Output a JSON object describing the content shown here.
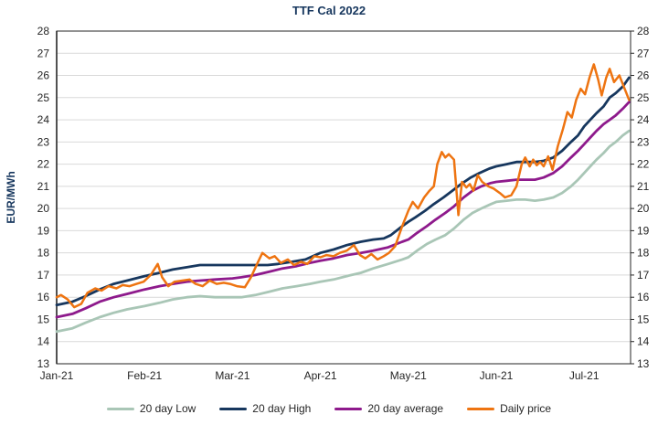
{
  "title": "TTF Cal 2022",
  "y_axis": {
    "label": "EUR/MWh",
    "min": 13,
    "max": 28,
    "tick_step": 1,
    "tick_labels": [
      "13",
      "14",
      "15",
      "16",
      "17",
      "18",
      "19",
      "20",
      "21",
      "22",
      "23",
      "24",
      "25",
      "26",
      "27",
      "28"
    ],
    "labels_on_both_sides": true
  },
  "x_axis": {
    "tick_labels": [
      "Jan-21",
      "Feb-21",
      "Mar-21",
      "Apr-21",
      "May-21",
      "Jun-21",
      "Jul-21"
    ]
  },
  "colors": {
    "title_text": "#17375E",
    "y_axis_title": "#17375E",
    "tick_text": "#262626",
    "gridline": "#D9D9D9",
    "axis_line": "#262626",
    "low": "#A9C6B6",
    "high": "#17375E",
    "average": "#8E1A8C",
    "daily": "#EE7411"
  },
  "chart_data": {
    "type": "line",
    "title": "TTF Cal 2022",
    "xlabel": "",
    "ylabel": "EUR/MWh",
    "ylim": [
      13,
      28
    ],
    "grid": "horizontal",
    "legend_position": "bottom",
    "x_unit": "months_after_Jan-21_tick",
    "x_tick_labels": [
      "Jan-21",
      "Feb-21",
      "Mar-21",
      "Apr-21",
      "May-21",
      "Jun-21",
      "Jul-21"
    ],
    "series": [
      {
        "name": "20 day Low",
        "color": "#A9C6B6",
        "points": [
          [
            0,
            14.45
          ],
          [
            0.18,
            14.6
          ],
          [
            0.33,
            14.85
          ],
          [
            0.49,
            15.1
          ],
          [
            0.65,
            15.3
          ],
          [
            0.8,
            15.45
          ],
          [
            1.0,
            15.6
          ],
          [
            1.17,
            15.75
          ],
          [
            1.32,
            15.9
          ],
          [
            1.48,
            16.0
          ],
          [
            1.63,
            16.05
          ],
          [
            1.8,
            16.0
          ],
          [
            2.0,
            16.0
          ],
          [
            2.1,
            16.0
          ],
          [
            2.26,
            16.1
          ],
          [
            2.42,
            16.25
          ],
          [
            2.57,
            16.4
          ],
          [
            2.73,
            16.5
          ],
          [
            2.88,
            16.6
          ],
          [
            3.0,
            16.7
          ],
          [
            3.15,
            16.8
          ],
          [
            3.3,
            16.95
          ],
          [
            3.46,
            17.1
          ],
          [
            3.6,
            17.3
          ],
          [
            3.77,
            17.5
          ],
          [
            3.93,
            17.7
          ],
          [
            4.0,
            17.8
          ],
          [
            4.1,
            18.1
          ],
          [
            4.21,
            18.4
          ],
          [
            4.31,
            18.6
          ],
          [
            4.42,
            18.8
          ],
          [
            4.52,
            19.1
          ],
          [
            4.63,
            19.5
          ],
          [
            4.73,
            19.8
          ],
          [
            4.83,
            20.0
          ],
          [
            4.94,
            20.2
          ],
          [
            5.0,
            20.3
          ],
          [
            5.12,
            20.35
          ],
          [
            5.23,
            20.4
          ],
          [
            5.33,
            20.4
          ],
          [
            5.44,
            20.35
          ],
          [
            5.54,
            20.4
          ],
          [
            5.65,
            20.5
          ],
          [
            5.75,
            20.7
          ],
          [
            5.85,
            21.0
          ],
          [
            5.93,
            21.3
          ],
          [
            6.0,
            21.6
          ],
          [
            6.07,
            21.9
          ],
          [
            6.14,
            22.2
          ],
          [
            6.22,
            22.5
          ],
          [
            6.29,
            22.8
          ],
          [
            6.36,
            23.0
          ],
          [
            6.44,
            23.3
          ],
          [
            6.51,
            23.5
          ]
        ]
      },
      {
        "name": "20 day High",
        "color": "#17375E",
        "points": [
          [
            0,
            15.65
          ],
          [
            0.18,
            15.8
          ],
          [
            0.33,
            16.05
          ],
          [
            0.49,
            16.35
          ],
          [
            0.65,
            16.6
          ],
          [
            0.8,
            16.75
          ],
          [
            1.0,
            16.95
          ],
          [
            1.17,
            17.1
          ],
          [
            1.32,
            17.25
          ],
          [
            1.48,
            17.35
          ],
          [
            1.63,
            17.45
          ],
          [
            1.8,
            17.45
          ],
          [
            2.0,
            17.45
          ],
          [
            2.2,
            17.45
          ],
          [
            2.4,
            17.45
          ],
          [
            2.52,
            17.5
          ],
          [
            2.68,
            17.6
          ],
          [
            2.83,
            17.7
          ],
          [
            3.0,
            18.0
          ],
          [
            3.15,
            18.15
          ],
          [
            3.3,
            18.35
          ],
          [
            3.46,
            18.5
          ],
          [
            3.6,
            18.6
          ],
          [
            3.72,
            18.65
          ],
          [
            3.8,
            18.8
          ],
          [
            3.93,
            19.2
          ],
          [
            4.0,
            19.4
          ],
          [
            4.08,
            19.6
          ],
          [
            4.19,
            19.9
          ],
          [
            4.29,
            20.2
          ],
          [
            4.4,
            20.5
          ],
          [
            4.5,
            20.8
          ],
          [
            4.6,
            21.1
          ],
          [
            4.71,
            21.4
          ],
          [
            4.81,
            21.6
          ],
          [
            4.92,
            21.8
          ],
          [
            5.0,
            21.9
          ],
          [
            5.12,
            22.0
          ],
          [
            5.23,
            22.1
          ],
          [
            5.33,
            22.1
          ],
          [
            5.44,
            22.1
          ],
          [
            5.54,
            22.15
          ],
          [
            5.65,
            22.3
          ],
          [
            5.75,
            22.6
          ],
          [
            5.85,
            23.0
          ],
          [
            5.93,
            23.3
          ],
          [
            6.0,
            23.7
          ],
          [
            6.07,
            24.0
          ],
          [
            6.14,
            24.3
          ],
          [
            6.22,
            24.6
          ],
          [
            6.29,
            25.0
          ],
          [
            6.36,
            25.2
          ],
          [
            6.44,
            25.5
          ],
          [
            6.51,
            25.9
          ]
        ]
      },
      {
        "name": "20 day average",
        "color": "#8E1A8C",
        "points": [
          [
            0,
            15.1
          ],
          [
            0.18,
            15.25
          ],
          [
            0.33,
            15.5
          ],
          [
            0.49,
            15.8
          ],
          [
            0.65,
            16.0
          ],
          [
            0.8,
            16.15
          ],
          [
            1.0,
            16.35
          ],
          [
            1.17,
            16.5
          ],
          [
            1.32,
            16.6
          ],
          [
            1.48,
            16.7
          ],
          [
            1.63,
            16.75
          ],
          [
            1.8,
            16.8
          ],
          [
            2.0,
            16.85
          ],
          [
            2.1,
            16.9
          ],
          [
            2.26,
            17.0
          ],
          [
            2.42,
            17.15
          ],
          [
            2.57,
            17.3
          ],
          [
            2.73,
            17.4
          ],
          [
            2.88,
            17.55
          ],
          [
            3.0,
            17.65
          ],
          [
            3.15,
            17.75
          ],
          [
            3.3,
            17.9
          ],
          [
            3.46,
            18.0
          ],
          [
            3.6,
            18.1
          ],
          [
            3.77,
            18.25
          ],
          [
            3.93,
            18.5
          ],
          [
            4.0,
            18.6
          ],
          [
            4.1,
            18.9
          ],
          [
            4.21,
            19.2
          ],
          [
            4.31,
            19.5
          ],
          [
            4.42,
            19.8
          ],
          [
            4.52,
            20.1
          ],
          [
            4.63,
            20.5
          ],
          [
            4.73,
            20.8
          ],
          [
            4.83,
            21.0
          ],
          [
            4.94,
            21.15
          ],
          [
            5.0,
            21.2
          ],
          [
            5.12,
            21.25
          ],
          [
            5.23,
            21.3
          ],
          [
            5.33,
            21.3
          ],
          [
            5.44,
            21.3
          ],
          [
            5.54,
            21.4
          ],
          [
            5.65,
            21.6
          ],
          [
            5.75,
            21.9
          ],
          [
            5.85,
            22.3
          ],
          [
            5.93,
            22.6
          ],
          [
            6.0,
            22.9
          ],
          [
            6.07,
            23.2
          ],
          [
            6.14,
            23.5
          ],
          [
            6.22,
            23.8
          ],
          [
            6.29,
            24.0
          ],
          [
            6.36,
            24.2
          ],
          [
            6.44,
            24.5
          ],
          [
            6.51,
            24.8
          ]
        ]
      },
      {
        "name": "Daily price",
        "color": "#EE7411",
        "points": [
          [
            0,
            16.0
          ],
          [
            0.05,
            16.1
          ],
          [
            0.125,
            15.9
          ],
          [
            0.2,
            15.55
          ],
          [
            0.28,
            15.7
          ],
          [
            0.35,
            16.2
          ],
          [
            0.44,
            16.4
          ],
          [
            0.51,
            16.3
          ],
          [
            0.59,
            16.5
          ],
          [
            0.68,
            16.4
          ],
          [
            0.75,
            16.55
          ],
          [
            0.83,
            16.5
          ],
          [
            0.91,
            16.6
          ],
          [
            0.99,
            16.7
          ],
          [
            1.07,
            17.0
          ],
          [
            1.15,
            17.5
          ],
          [
            1.2,
            16.9
          ],
          [
            1.27,
            16.5
          ],
          [
            1.34,
            16.7
          ],
          [
            1.43,
            16.75
          ],
          [
            1.51,
            16.8
          ],
          [
            1.58,
            16.6
          ],
          [
            1.66,
            16.5
          ],
          [
            1.74,
            16.75
          ],
          [
            1.82,
            16.6
          ],
          [
            1.9,
            16.65
          ],
          [
            1.97,
            16.6
          ],
          [
            2.05,
            16.5
          ],
          [
            2.14,
            16.45
          ],
          [
            2.21,
            16.9
          ],
          [
            2.28,
            17.5
          ],
          [
            2.34,
            18.0
          ],
          [
            2.42,
            17.75
          ],
          [
            2.48,
            17.85
          ],
          [
            2.55,
            17.55
          ],
          [
            2.63,
            17.7
          ],
          [
            2.7,
            17.45
          ],
          [
            2.78,
            17.6
          ],
          [
            2.85,
            17.5
          ],
          [
            2.93,
            17.85
          ],
          [
            3.0,
            17.8
          ],
          [
            3.07,
            17.9
          ],
          [
            3.15,
            17.85
          ],
          [
            3.22,
            18.0
          ],
          [
            3.3,
            18.1
          ],
          [
            3.38,
            18.35
          ],
          [
            3.45,
            17.9
          ],
          [
            3.51,
            17.75
          ],
          [
            3.58,
            17.95
          ],
          [
            3.65,
            17.7
          ],
          [
            3.72,
            17.85
          ],
          [
            3.78,
            18.0
          ],
          [
            3.85,
            18.3
          ],
          [
            3.93,
            19.2
          ],
          [
            4.0,
            19.9
          ],
          [
            4.05,
            20.3
          ],
          [
            4.11,
            20.0
          ],
          [
            4.18,
            20.5
          ],
          [
            4.24,
            20.8
          ],
          [
            4.29,
            21.0
          ],
          [
            4.33,
            22.0
          ],
          [
            4.38,
            22.55
          ],
          [
            4.42,
            22.3
          ],
          [
            4.46,
            22.45
          ],
          [
            4.52,
            22.2
          ],
          [
            4.57,
            19.7
          ],
          [
            4.61,
            21.2
          ],
          [
            4.66,
            20.95
          ],
          [
            4.7,
            21.1
          ],
          [
            4.74,
            20.8
          ],
          [
            4.79,
            21.5
          ],
          [
            4.84,
            21.2
          ],
          [
            4.91,
            21.0
          ],
          [
            4.97,
            20.9
          ],
          [
            5.04,
            20.7
          ],
          [
            5.1,
            20.5
          ],
          [
            5.17,
            20.6
          ],
          [
            5.23,
            21.0
          ],
          [
            5.29,
            22.0
          ],
          [
            5.33,
            22.3
          ],
          [
            5.38,
            21.9
          ],
          [
            5.42,
            22.2
          ],
          [
            5.46,
            21.95
          ],
          [
            5.5,
            22.1
          ],
          [
            5.54,
            21.9
          ],
          [
            5.59,
            22.35
          ],
          [
            5.64,
            21.75
          ],
          [
            5.7,
            22.8
          ],
          [
            5.76,
            23.6
          ],
          [
            5.81,
            24.35
          ],
          [
            5.86,
            24.1
          ],
          [
            5.91,
            24.9
          ],
          [
            5.96,
            25.4
          ],
          [
            6.01,
            25.15
          ],
          [
            6.06,
            25.9
          ],
          [
            6.11,
            26.5
          ],
          [
            6.16,
            25.8
          ],
          [
            6.2,
            25.1
          ],
          [
            6.25,
            25.9
          ],
          [
            6.29,
            26.3
          ],
          [
            6.34,
            25.7
          ],
          [
            6.4,
            26.0
          ],
          [
            6.46,
            25.4
          ],
          [
            6.51,
            24.9
          ]
        ]
      }
    ]
  },
  "legend": {
    "items": [
      {
        "label": "20 day Low"
      },
      {
        "label": "20 day High"
      },
      {
        "label": "20 day average"
      },
      {
        "label": "Daily price"
      }
    ]
  }
}
